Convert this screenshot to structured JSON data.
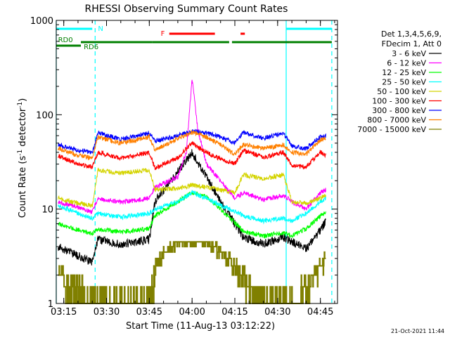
{
  "chart_data": {
    "type": "line",
    "title": "RHESSI Observing Summary Count Rates",
    "xlabel": "Start Time (11-Aug-13 03:12:22)",
    "ylabel": "Count Rate (s⁻¹ detector⁻¹)",
    "ylabel_parts": {
      "main": "Count Rate (s",
      "sup1": "-1",
      "mid": " detector",
      "sup2": "-1",
      "end": ")"
    },
    "yscale": "log",
    "ylim": [
      1,
      1000
    ],
    "xlim": [
      "03:12:22",
      "04:51"
    ],
    "x_ticks": [
      "03:15",
      "03:30",
      "03:45",
      "04:00",
      "04:15",
      "04:30",
      "04:45"
    ],
    "y_ticks": [
      {
        "value": 1,
        "label": "1"
      },
      {
        "value": 10,
        "label": "10"
      },
      {
        "value": 100,
        "label": "100"
      },
      {
        "value": 1000,
        "label": "1000"
      }
    ],
    "timestamp": "21-Oct-2021 11:44",
    "legend": {
      "header": [
        "Det 1,3,4,5,6,9,",
        "FDecim 1, Att 0"
      ],
      "placement": "right"
    },
    "series": [
      {
        "name": "3 - 6 keV",
        "color": "#000000",
        "x": [
          "03:13",
          "03:20",
          "03:25",
          "03:27",
          "03:35",
          "03:45",
          "03:47",
          "03:55",
          "04:00",
          "04:05",
          "04:10",
          "04:15",
          "04:18",
          "04:25",
          "04:32",
          "04:35",
          "04:40",
          "04:45",
          "04:47"
        ],
        "values": [
          4,
          3.2,
          2.7,
          4.8,
          4.2,
          4.8,
          12,
          25,
          40,
          22,
          12,
          7,
          5,
          4.3,
          5,
          4.5,
          3.8,
          6,
          7.5
        ]
      },
      {
        "name": "6 - 12 keV",
        "color": "#ff00ff",
        "x": [
          "03:13",
          "03:20",
          "03:25",
          "03:27",
          "03:35",
          "03:45",
          "03:47",
          "03:55",
          "03:58",
          "04:00",
          "04:02",
          "04:05",
          "04:10",
          "04:15",
          "04:18",
          "04:25",
          "04:32",
          "04:35",
          "04:40",
          "04:45",
          "04:47"
        ],
        "values": [
          12,
          10.5,
          9.2,
          13,
          11.8,
          13,
          17,
          22,
          40,
          240,
          70,
          30,
          20,
          13,
          15,
          12.5,
          14,
          12,
          10,
          15,
          16
        ]
      },
      {
        "name": "12 - 25 keV",
        "color": "#00ff00",
        "x": [
          "03:13",
          "03:20",
          "03:25",
          "03:27",
          "03:35",
          "03:45",
          "03:47",
          "03:55",
          "04:00",
          "04:05",
          "04:10",
          "04:15",
          "04:18",
          "04:25",
          "04:32",
          "04:35",
          "04:40",
          "04:45",
          "04:47"
        ],
        "values": [
          7,
          6,
          5.5,
          6.2,
          5.7,
          6.2,
          8.5,
          12,
          15,
          13.5,
          10,
          7.2,
          5.8,
          5.2,
          5.6,
          5.2,
          6.2,
          8.5,
          9.5
        ]
      },
      {
        "name": "25 - 50 keV",
        "color": "#00ffff",
        "x": [
          "03:13",
          "03:20",
          "03:25",
          "03:27",
          "03:35",
          "03:45",
          "03:47",
          "03:55",
          "04:00",
          "04:05",
          "04:10",
          "04:15",
          "04:18",
          "04:25",
          "04:32",
          "04:35",
          "04:40",
          "04:45",
          "04:47"
        ],
        "values": [
          11,
          9,
          8,
          9,
          8.2,
          9,
          10,
          12,
          15,
          13,
          11,
          9.5,
          8.5,
          7.5,
          8,
          7.5,
          9,
          12,
          13
        ]
      },
      {
        "name": "50 - 100 keV",
        "color": "#d4d400",
        "x": [
          "03:13",
          "03:20",
          "03:25",
          "03:27",
          "03:35",
          "03:45",
          "03:47",
          "03:55",
          "04:00",
          "04:05",
          "04:10",
          "04:15",
          "04:18",
          "04:25",
          "04:32",
          "04:35",
          "04:40",
          "04:45",
          "04:47"
        ],
        "values": [
          13,
          11.5,
          10.8,
          26,
          24,
          26,
          16,
          16.5,
          18,
          17,
          16,
          15,
          23,
          21,
          23,
          12,
          11.5,
          13,
          14
        ]
      },
      {
        "name": "100 - 300 keV",
        "color": "#ff0000",
        "x": [
          "03:13",
          "03:20",
          "03:25",
          "03:27",
          "03:35",
          "03:45",
          "03:47",
          "03:55",
          "04:00",
          "04:05",
          "04:10",
          "04:15",
          "04:18",
          "04:25",
          "04:32",
          "04:35",
          "04:40",
          "04:45",
          "04:47"
        ],
        "values": [
          37,
          30,
          28,
          40,
          34.5,
          40,
          27,
          35,
          50,
          40,
          34,
          30,
          42,
          35,
          40,
          29,
          28,
          40,
          37
        ]
      },
      {
        "name": "300 - 800 keV",
        "color": "#0000ff",
        "x": [
          "03:13",
          "03:20",
          "03:25",
          "03:27",
          "03:35",
          "03:45",
          "03:47",
          "03:55",
          "04:00",
          "04:05",
          "04:10",
          "04:15",
          "04:18",
          "04:25",
          "04:32",
          "04:35",
          "04:40",
          "04:45",
          "04:47"
        ],
        "values": [
          48,
          42,
          40,
          64,
          55,
          64,
          52,
          60,
          67,
          64,
          58,
          50,
          65,
          56,
          65,
          46,
          44,
          58,
          60
        ]
      },
      {
        "name": "800 - 7000 keV",
        "color": "#ff8000",
        "x": [
          "03:13",
          "03:20",
          "03:25",
          "03:27",
          "03:35",
          "03:45",
          "03:47",
          "03:55",
          "04:00",
          "04:05",
          "04:10",
          "04:15",
          "04:18",
          "04:25",
          "04:32",
          "04:35",
          "04:40",
          "04:45",
          "04:47"
        ],
        "values": [
          44,
          37,
          35,
          58,
          50,
          58,
          42,
          56,
          65,
          58,
          48,
          38,
          48,
          44,
          48,
          40,
          38,
          54,
          56
        ]
      },
      {
        "name": "7000 - 15000 keV",
        "color": "#808000",
        "x": [
          "03:13",
          "03:17",
          "03:22",
          "03:25",
          "03:27",
          "03:32",
          "03:45",
          "03:48",
          "03:55",
          "04:00",
          "04:05",
          "04:10",
          "04:15",
          "04:17",
          "04:22",
          "04:25",
          "04:31",
          "04:36",
          "04:43",
          "04:47"
        ],
        "values": [
          2,
          1.5,
          1.2,
          1,
          1,
          1,
          1,
          3,
          4.5,
          4.5,
          4.5,
          3.5,
          2.5,
          2,
          1.2,
          1,
          1,
          1,
          2,
          3
        ]
      }
    ],
    "annotations": {
      "night_label": "N",
      "flare_label": "F",
      "decimation_labels": [
        "RD0",
        "RD6"
      ],
      "night_segments": [
        [
          "03:12:22",
          "03:25"
        ],
        [
          "04:33",
          "04:49"
        ]
      ],
      "flare_segments": [
        [
          "03:52",
          "04:08"
        ],
        [
          "04:17",
          "04:18:30"
        ]
      ],
      "rd0_segments": [
        [
          "03:12:22",
          "03:21"
        ]
      ],
      "rd6_segments": [
        [
          "03:21",
          "03:46"
        ],
        [
          "03:46",
          "04:13"
        ],
        [
          "04:14",
          "04:34"
        ],
        [
          "04:34",
          "04:49"
        ]
      ],
      "saa_boundaries": [
        "03:12:22",
        "04:33"
      ],
      "dashed_boundaries": [
        "03:26",
        "04:49"
      ]
    }
  }
}
